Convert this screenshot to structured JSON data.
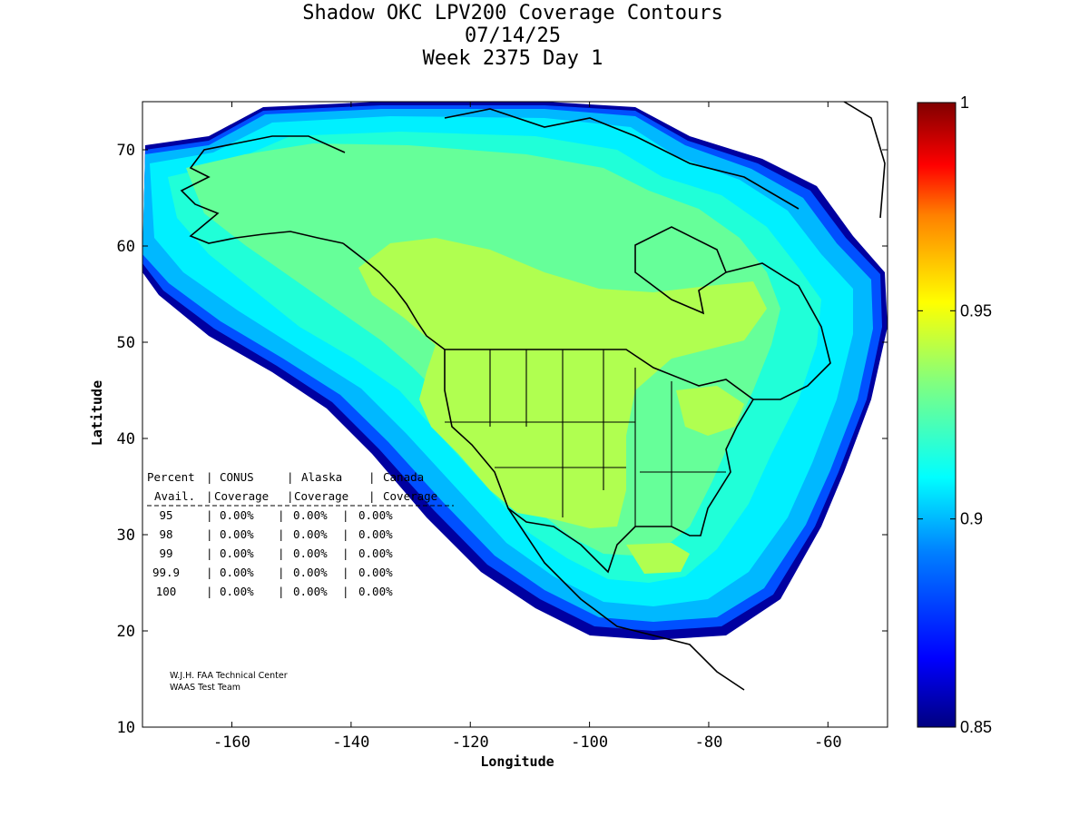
{
  "title": {
    "line1": "Shadow OKC LPV200 Coverage Contours",
    "line2": "07/14/25",
    "line3": "Week 2375 Day 1"
  },
  "axes": {
    "xlabel": "Longitude",
    "ylabel": "Latitude",
    "x_ticks": [
      "-160",
      "-140",
      "-120",
      "-100",
      "-80",
      "-60"
    ],
    "y_ticks": [
      "10",
      "20",
      "30",
      "40",
      "50",
      "60",
      "70"
    ]
  },
  "colorbar": {
    "ticks": [
      "1",
      "0.95",
      "0.9",
      "0.85"
    ],
    "colors": [
      "#800000",
      "#ff0000",
      "#ff8000",
      "#ffff00",
      "#80ff80",
      "#00ffff",
      "#0080ff",
      "#0000ff",
      "#000080"
    ]
  },
  "stats_table": {
    "header1": [
      "Percent",
      "CONUS",
      "Alaska",
      "Canada"
    ],
    "header2": [
      "Avail.",
      "Coverage",
      "Coverage",
      "Coverage"
    ],
    "rows": [
      {
        "pct": "95",
        "conus": "0.00%",
        "alaska": "0.00%",
        "canada": "0.00%"
      },
      {
        "pct": "98",
        "conus": "0.00%",
        "alaska": "0.00%",
        "canada": "0.00%"
      },
      {
        "pct": "99",
        "conus": "0.00%",
        "alaska": "0.00%",
        "canada": "0.00%"
      },
      {
        "pct": "99.9",
        "conus": "0.00%",
        "alaska": "0.00%",
        "canada": "0.00%"
      },
      {
        "pct": "100",
        "conus": "0.00%",
        "alaska": "0.00%",
        "canada": "0.00%"
      }
    ]
  },
  "credit": {
    "line1": "W.J.H. FAA Technical Center",
    "line2": "WAAS Test Team"
  },
  "map_data": {
    "x_range": [
      -175,
      -50
    ],
    "y_range": [
      10,
      75
    ],
    "color_range": [
      0.85,
      1.0
    ]
  }
}
